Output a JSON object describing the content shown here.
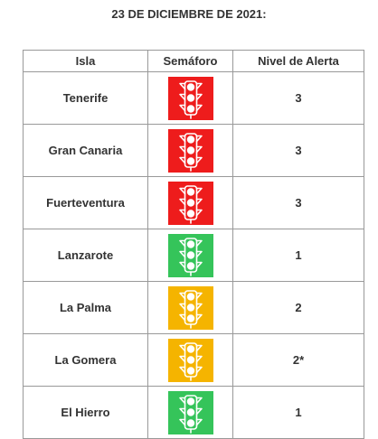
{
  "heading": "23 DE DICIEMBRE DE 2021:",
  "table": {
    "headers": {
      "isla": "Isla",
      "semaforo": "Semáforo",
      "nivel": "Nivel de Alerta"
    },
    "rows": [
      {
        "isla": "Tenerife",
        "semaforo_color": "#ee1c1c",
        "semaforo_icon": "traffic-light-icon",
        "nivel": "3"
      },
      {
        "isla": "Gran Canaria",
        "semaforo_color": "#ee1c1c",
        "semaforo_icon": "traffic-light-icon",
        "nivel": "3"
      },
      {
        "isla": "Fuerteventura",
        "semaforo_color": "#ee1c1c",
        "semaforo_icon": "traffic-light-icon",
        "nivel": "3"
      },
      {
        "isla": "Lanzarote",
        "semaforo_color": "#35c45a",
        "semaforo_icon": "traffic-light-icon",
        "nivel": "1"
      },
      {
        "isla": "La Palma",
        "semaforo_color": "#f5b400",
        "semaforo_icon": "traffic-light-icon",
        "nivel": "2"
      },
      {
        "isla": "La Gomera",
        "semaforo_color": "#f5b400",
        "semaforo_icon": "traffic-light-icon",
        "nivel": "2*"
      },
      {
        "isla": "El Hierro",
        "semaforo_color": "#35c45a",
        "semaforo_icon": "traffic-light-icon",
        "nivel": "1"
      }
    ]
  }
}
